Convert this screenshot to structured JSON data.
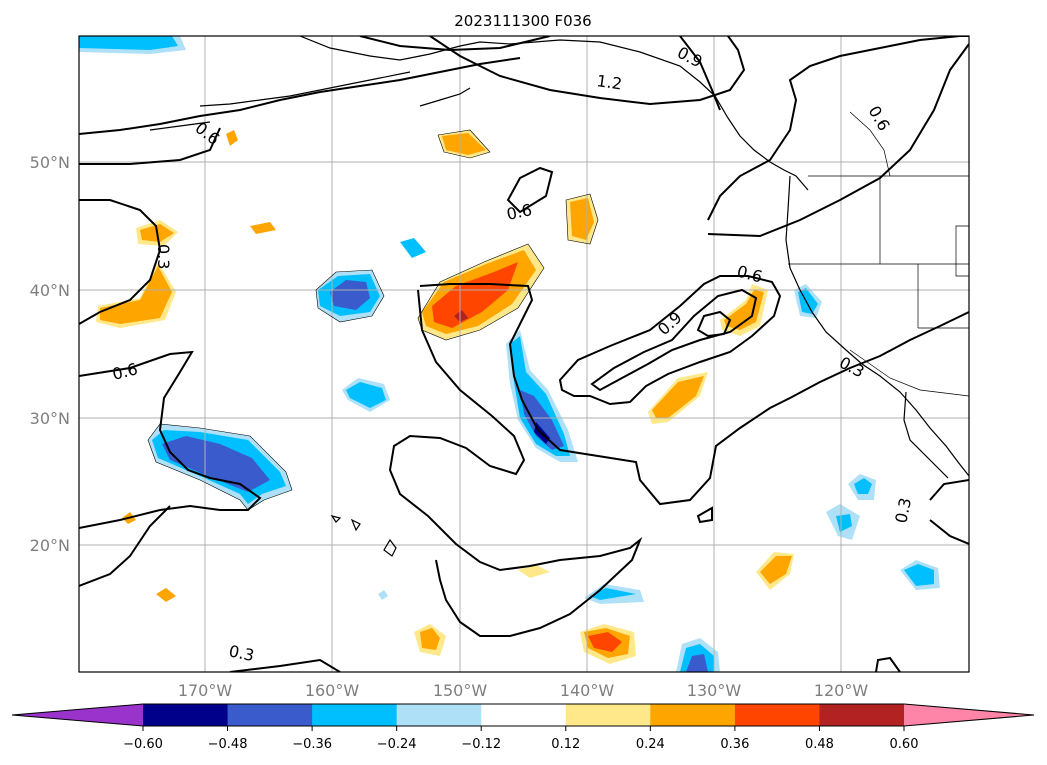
{
  "map": {
    "title": "2023111300 F036",
    "lat_labels": [
      "50°N",
      "40°N",
      "30°N",
      "20°N"
    ],
    "lon_labels": [
      "170°W",
      "160°W",
      "150°W",
      "140°W",
      "130°W",
      "120°W"
    ],
    "contour_labels": [
      "0.9",
      "1.2",
      "0.6",
      "0.6",
      "0.6",
      "0.3",
      "0.6",
      "0.6",
      "0.9",
      "0.3",
      "0.3",
      "0.3"
    ]
  },
  "colorbar": {
    "ticks": [
      "−0.60",
      "−0.48",
      "−0.36",
      "−0.24",
      "−0.12",
      "0.12",
      "0.24",
      "0.36",
      "0.48",
      "0.60"
    ],
    "colors": {
      "under": "#9933cc",
      "bins": [
        "#00008b",
        "#3a5bcc",
        "#00bfff",
        "#aee0f7",
        "#ffffff",
        "#ffe88a",
        "#ffa500",
        "#ff4500",
        "#b22222"
      ],
      "over": "#ff85a8"
    }
  }
}
